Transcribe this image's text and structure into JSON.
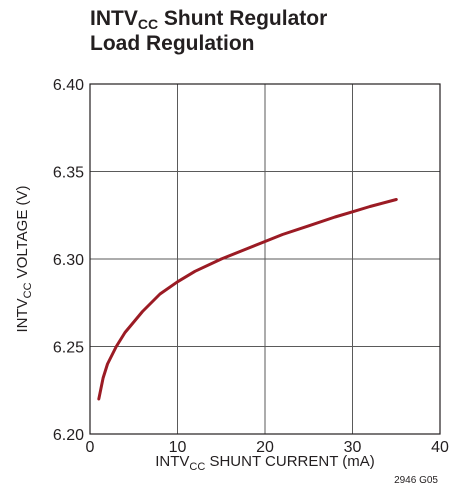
{
  "chart_data": {
    "type": "line",
    "title_line1_main": "INTV",
    "title_line1_sub": "CC",
    "title_line1_rest": " Shunt Regulator",
    "title_line2": "Load Regulation",
    "xlabel": {
      "main": "INTV",
      "sub": "CC",
      "rest": " SHUNT CURRENT (mA)"
    },
    "ylabel": {
      "main": "INTV",
      "sub": "CC",
      "rest": " VOLTAGE (V)"
    },
    "figure_code": "2946 G05",
    "xlim": [
      0,
      40
    ],
    "ylim": [
      6.2,
      6.4
    ],
    "x_ticks": [
      "0",
      "10",
      "20",
      "30",
      "40"
    ],
    "y_ticks": [
      "6.20",
      "6.25",
      "6.30",
      "6.35",
      "6.40"
    ],
    "grid": true,
    "line_color": "#9b1b24",
    "series": [
      {
        "x": [
          1,
          1.5,
          2,
          3,
          4,
          6,
          8,
          10,
          12,
          15,
          18,
          20,
          22,
          25,
          28,
          30,
          32,
          35
        ],
        "y": [
          6.22,
          6.232,
          6.24,
          6.25,
          6.258,
          6.27,
          6.28,
          6.287,
          6.293,
          6.3,
          6.306,
          6.31,
          6.314,
          6.319,
          6.324,
          6.327,
          6.33,
          6.334
        ]
      }
    ]
  }
}
